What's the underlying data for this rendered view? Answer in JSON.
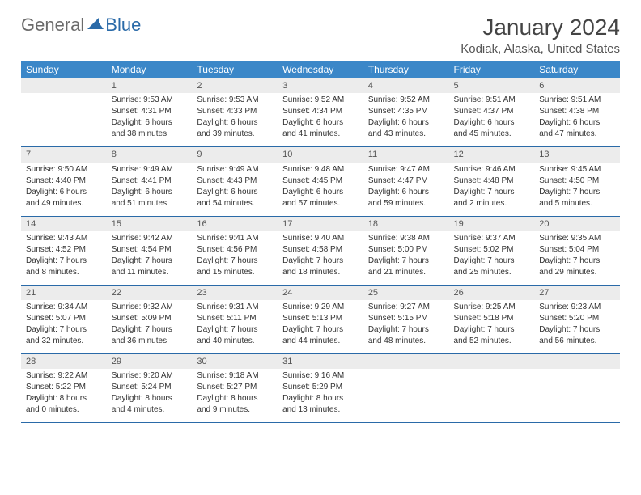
{
  "logo": {
    "text1": "General",
    "text2": "Blue"
  },
  "title": "January 2024",
  "location": "Kodiak, Alaska, United States",
  "colors": {
    "header_bg": "#3b87c8",
    "header_text": "#ffffff",
    "daynum_bg": "#ececec",
    "rule": "#2a6aa8",
    "body_text": "#333333",
    "logo_gray": "#6b6b6b",
    "logo_blue": "#2a6aa8"
  },
  "weekdays": [
    "Sunday",
    "Monday",
    "Tuesday",
    "Wednesday",
    "Thursday",
    "Friday",
    "Saturday"
  ],
  "weeks": [
    {
      "days": [
        {
          "num": "",
          "lines": []
        },
        {
          "num": "1",
          "lines": [
            "Sunrise: 9:53 AM",
            "Sunset: 4:31 PM",
            "Daylight: 6 hours",
            "and 38 minutes."
          ]
        },
        {
          "num": "2",
          "lines": [
            "Sunrise: 9:53 AM",
            "Sunset: 4:33 PM",
            "Daylight: 6 hours",
            "and 39 minutes."
          ]
        },
        {
          "num": "3",
          "lines": [
            "Sunrise: 9:52 AM",
            "Sunset: 4:34 PM",
            "Daylight: 6 hours",
            "and 41 minutes."
          ]
        },
        {
          "num": "4",
          "lines": [
            "Sunrise: 9:52 AM",
            "Sunset: 4:35 PM",
            "Daylight: 6 hours",
            "and 43 minutes."
          ]
        },
        {
          "num": "5",
          "lines": [
            "Sunrise: 9:51 AM",
            "Sunset: 4:37 PM",
            "Daylight: 6 hours",
            "and 45 minutes."
          ]
        },
        {
          "num": "6",
          "lines": [
            "Sunrise: 9:51 AM",
            "Sunset: 4:38 PM",
            "Daylight: 6 hours",
            "and 47 minutes."
          ]
        }
      ]
    },
    {
      "days": [
        {
          "num": "7",
          "lines": [
            "Sunrise: 9:50 AM",
            "Sunset: 4:40 PM",
            "Daylight: 6 hours",
            "and 49 minutes."
          ]
        },
        {
          "num": "8",
          "lines": [
            "Sunrise: 9:49 AM",
            "Sunset: 4:41 PM",
            "Daylight: 6 hours",
            "and 51 minutes."
          ]
        },
        {
          "num": "9",
          "lines": [
            "Sunrise: 9:49 AM",
            "Sunset: 4:43 PM",
            "Daylight: 6 hours",
            "and 54 minutes."
          ]
        },
        {
          "num": "10",
          "lines": [
            "Sunrise: 9:48 AM",
            "Sunset: 4:45 PM",
            "Daylight: 6 hours",
            "and 57 minutes."
          ]
        },
        {
          "num": "11",
          "lines": [
            "Sunrise: 9:47 AM",
            "Sunset: 4:47 PM",
            "Daylight: 6 hours",
            "and 59 minutes."
          ]
        },
        {
          "num": "12",
          "lines": [
            "Sunrise: 9:46 AM",
            "Sunset: 4:48 PM",
            "Daylight: 7 hours",
            "and 2 minutes."
          ]
        },
        {
          "num": "13",
          "lines": [
            "Sunrise: 9:45 AM",
            "Sunset: 4:50 PM",
            "Daylight: 7 hours",
            "and 5 minutes."
          ]
        }
      ]
    },
    {
      "days": [
        {
          "num": "14",
          "lines": [
            "Sunrise: 9:43 AM",
            "Sunset: 4:52 PM",
            "Daylight: 7 hours",
            "and 8 minutes."
          ]
        },
        {
          "num": "15",
          "lines": [
            "Sunrise: 9:42 AM",
            "Sunset: 4:54 PM",
            "Daylight: 7 hours",
            "and 11 minutes."
          ]
        },
        {
          "num": "16",
          "lines": [
            "Sunrise: 9:41 AM",
            "Sunset: 4:56 PM",
            "Daylight: 7 hours",
            "and 15 minutes."
          ]
        },
        {
          "num": "17",
          "lines": [
            "Sunrise: 9:40 AM",
            "Sunset: 4:58 PM",
            "Daylight: 7 hours",
            "and 18 minutes."
          ]
        },
        {
          "num": "18",
          "lines": [
            "Sunrise: 9:38 AM",
            "Sunset: 5:00 PM",
            "Daylight: 7 hours",
            "and 21 minutes."
          ]
        },
        {
          "num": "19",
          "lines": [
            "Sunrise: 9:37 AM",
            "Sunset: 5:02 PM",
            "Daylight: 7 hours",
            "and 25 minutes."
          ]
        },
        {
          "num": "20",
          "lines": [
            "Sunrise: 9:35 AM",
            "Sunset: 5:04 PM",
            "Daylight: 7 hours",
            "and 29 minutes."
          ]
        }
      ]
    },
    {
      "days": [
        {
          "num": "21",
          "lines": [
            "Sunrise: 9:34 AM",
            "Sunset: 5:07 PM",
            "Daylight: 7 hours",
            "and 32 minutes."
          ]
        },
        {
          "num": "22",
          "lines": [
            "Sunrise: 9:32 AM",
            "Sunset: 5:09 PM",
            "Daylight: 7 hours",
            "and 36 minutes."
          ]
        },
        {
          "num": "23",
          "lines": [
            "Sunrise: 9:31 AM",
            "Sunset: 5:11 PM",
            "Daylight: 7 hours",
            "and 40 minutes."
          ]
        },
        {
          "num": "24",
          "lines": [
            "Sunrise: 9:29 AM",
            "Sunset: 5:13 PM",
            "Daylight: 7 hours",
            "and 44 minutes."
          ]
        },
        {
          "num": "25",
          "lines": [
            "Sunrise: 9:27 AM",
            "Sunset: 5:15 PM",
            "Daylight: 7 hours",
            "and 48 minutes."
          ]
        },
        {
          "num": "26",
          "lines": [
            "Sunrise: 9:25 AM",
            "Sunset: 5:18 PM",
            "Daylight: 7 hours",
            "and 52 minutes."
          ]
        },
        {
          "num": "27",
          "lines": [
            "Sunrise: 9:23 AM",
            "Sunset: 5:20 PM",
            "Daylight: 7 hours",
            "and 56 minutes."
          ]
        }
      ]
    },
    {
      "days": [
        {
          "num": "28",
          "lines": [
            "Sunrise: 9:22 AM",
            "Sunset: 5:22 PM",
            "Daylight: 8 hours",
            "and 0 minutes."
          ]
        },
        {
          "num": "29",
          "lines": [
            "Sunrise: 9:20 AM",
            "Sunset: 5:24 PM",
            "Daylight: 8 hours",
            "and 4 minutes."
          ]
        },
        {
          "num": "30",
          "lines": [
            "Sunrise: 9:18 AM",
            "Sunset: 5:27 PM",
            "Daylight: 8 hours",
            "and 9 minutes."
          ]
        },
        {
          "num": "31",
          "lines": [
            "Sunrise: 9:16 AM",
            "Sunset: 5:29 PM",
            "Daylight: 8 hours",
            "and 13 minutes."
          ]
        },
        {
          "num": "",
          "lines": []
        },
        {
          "num": "",
          "lines": []
        },
        {
          "num": "",
          "lines": []
        }
      ]
    }
  ]
}
